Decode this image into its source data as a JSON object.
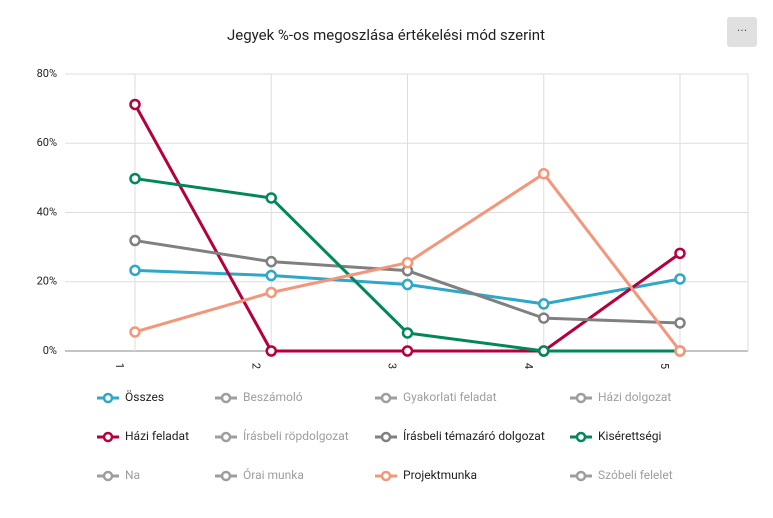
{
  "chart_data": {
    "type": "line",
    "title": "Jegyek %-os megoszlása értékelési mód szerint",
    "menu_button": "···",
    "categories": [
      "1",
      "2",
      "3",
      "4",
      "5"
    ],
    "ylim": [
      0,
      80
    ],
    "yticks": [
      {
        "value": 0,
        "label": "0%"
      },
      {
        "value": 20,
        "label": "20%"
      },
      {
        "value": 40,
        "label": "40%"
      },
      {
        "value": 60,
        "label": "60%"
      },
      {
        "value": 80,
        "label": "80%"
      }
    ],
    "grid": true,
    "series": [
      {
        "name": "Összes",
        "color": "#2ea7c8",
        "visible": true,
        "values": [
          23.3,
          21.8,
          19.2,
          13.6,
          20.8
        ]
      },
      {
        "name": "Beszámoló",
        "color": "#9e9e9e",
        "visible": false
      },
      {
        "name": "Gyakorlati feladat",
        "color": "#9e9e9e",
        "visible": false
      },
      {
        "name": "Házi dolgozat",
        "color": "#9e9e9e",
        "visible": false
      },
      {
        "name": "Házi feladat",
        "color": "#b5003d",
        "visible": true,
        "values": [
          71.2,
          0,
          0,
          0,
          28.2
        ]
      },
      {
        "name": "Írásbeli röpdolgozat",
        "color": "#9e9e9e",
        "visible": false
      },
      {
        "name": "Írásbeli témazáró dolgozat",
        "color": "#808080",
        "visible": true,
        "values": [
          31.9,
          25.8,
          23.2,
          9.5,
          8.1
        ]
      },
      {
        "name": "Kisérettségi",
        "color": "#00875a",
        "visible": true,
        "values": [
          49.8,
          44.2,
          5.2,
          0,
          0
        ]
      },
      {
        "name": "Na",
        "color": "#9e9e9e",
        "visible": false
      },
      {
        "name": "Órai munka",
        "color": "#9e9e9e",
        "visible": false
      },
      {
        "name": "Projektmunka",
        "color": "#f4967a",
        "visible": true,
        "values": [
          5.5,
          16.9,
          25.5,
          51.2,
          0
        ]
      },
      {
        "name": "Szóbeli felelet",
        "color": "#9e9e9e",
        "visible": false
      }
    ]
  }
}
